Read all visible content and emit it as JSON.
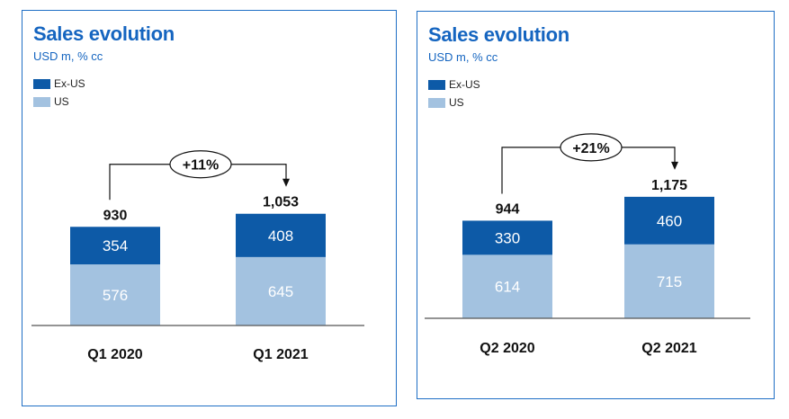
{
  "colors": {
    "ex_us": "#0d5aa7",
    "us": "#a3c2e0",
    "frame": "#1f6fc5",
    "title": "#1565c0"
  },
  "chart_data": [
    {
      "type": "bar",
      "title": "Sales evolution",
      "subtitle": "USD m, % cc",
      "legend": [
        "Ex-US",
        "US"
      ],
      "legend_placement": "top-left",
      "categories": [
        "Q1 2020",
        "Q1 2021"
      ],
      "series": [
        {
          "name": "US",
          "values": [
            576,
            645
          ]
        },
        {
          "name": "Ex-US",
          "values": [
            354,
            408
          ]
        }
      ],
      "totals": [
        "930",
        "1,053"
      ],
      "growth_label": "+11%",
      "ylim": [
        0,
        1200
      ]
    },
    {
      "type": "bar",
      "title": "Sales evolution",
      "subtitle": "USD m, % cc",
      "legend": [
        "Ex-US",
        "US"
      ],
      "legend_placement": "top-left",
      "categories": [
        "Q2 2020",
        "Q2 2021"
      ],
      "series": [
        {
          "name": "US",
          "values": [
            614,
            715
          ]
        },
        {
          "name": "Ex-US",
          "values": [
            330,
            460
          ]
        }
      ],
      "totals": [
        "944",
        "1,175"
      ],
      "growth_label": "+21%",
      "ylim": [
        0,
        1200
      ]
    }
  ]
}
